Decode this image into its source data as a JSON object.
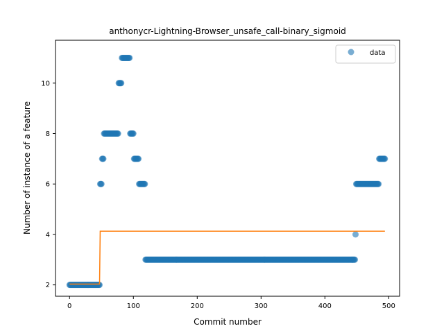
{
  "chart_data": {
    "type": "scatter",
    "title": "anthonycr-Lightning-Browser_unsafe_call-binary_sigmoid",
    "xlabel": "Commit number",
    "ylabel": "Number of instance of a feature",
    "xlim": [
      -22,
      517
    ],
    "ylim": [
      1.55,
      11.7
    ],
    "xticks": [
      0,
      100,
      200,
      300,
      400,
      500
    ],
    "yticks": [
      2,
      4,
      6,
      8,
      10
    ],
    "grid": false,
    "legend": {
      "placement": "top-right",
      "entries": [
        "data"
      ]
    },
    "colors": {
      "data": "#1f77b4",
      "fit": "#ff7f0e"
    },
    "data_segments": [
      {
        "x_from": 0,
        "x_to": 47,
        "y": 2
      },
      {
        "x_from": 48,
        "x_to": 50,
        "y": 6
      },
      {
        "x_from": 51,
        "x_to": 53,
        "y": 7
      },
      {
        "x_from": 54,
        "x_to": 76,
        "y": 8
      },
      {
        "x_from": 77,
        "x_to": 81,
        "y": 10
      },
      {
        "x_from": 82,
        "x_to": 94,
        "y": 11
      },
      {
        "x_from": 95,
        "x_to": 100,
        "y": 8
      },
      {
        "x_from": 101,
        "x_to": 108,
        "y": 7
      },
      {
        "x_from": 109,
        "x_to": 118,
        "y": 6
      },
      {
        "x_from": 119,
        "x_to": 447,
        "y": 3
      },
      {
        "x_from": 448,
        "x_to": 448,
        "y": 4
      },
      {
        "x_from": 449,
        "x_to": 484,
        "y": 6
      },
      {
        "x_from": 485,
        "x_to": 494,
        "y": 7
      }
    ],
    "fit_line": {
      "x": [
        0,
        47,
        48,
        494
      ],
      "y": [
        2.03,
        2.03,
        4.13,
        4.13
      ]
    }
  }
}
